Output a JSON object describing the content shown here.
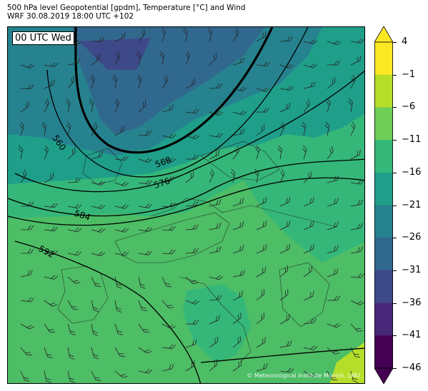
{
  "header": {
    "title_line1": "500 hPa level Geopotential [gpdm], Temperature [°C] and Wind",
    "title_line2": "WRF 30.08.2019 18:00 UTC +102"
  },
  "map": {
    "valid_time_label": "00 UTC Wed",
    "credit": "© Meteorological Institute Munich, LMU",
    "contour_labels": [
      "560",
      "568",
      "576",
      "584",
      "592"
    ]
  },
  "colorbar": {
    "tick_labels": [
      "4",
      "−1",
      "−6",
      "−11",
      "−16",
      "−21",
      "−26",
      "−31",
      "−36",
      "−41",
      "−46"
    ],
    "colors": [
      "#fde725",
      "#b5de2b",
      "#6ece58",
      "#35b779",
      "#1f9e89",
      "#26828e",
      "#31688e",
      "#3e4989",
      "#482878",
      "#440154"
    ],
    "extend_top": "#fde725",
    "extend_bottom": "#440154"
  }
}
